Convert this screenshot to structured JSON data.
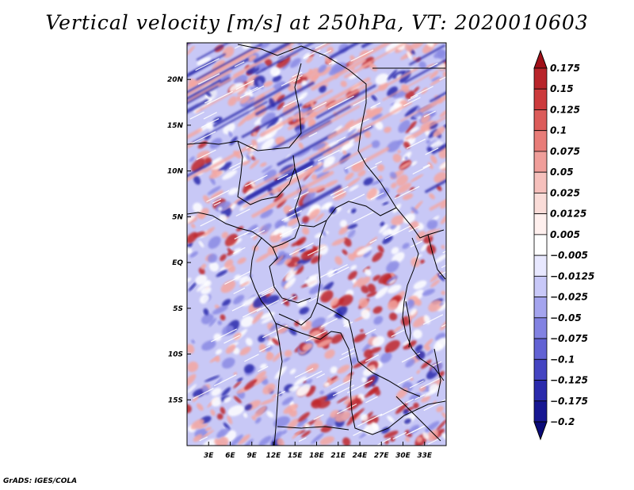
{
  "chart_data": {
    "type": "heatmap",
    "title": "Vertical velocity [m/s] at 250hPa, VT: 2020010603",
    "variable": "Vertical velocity",
    "units": "m/s",
    "level": "250hPa",
    "valid_time": "2020010603",
    "x_axis": {
      "type": "longitude",
      "range_deg": [
        0,
        36
      ],
      "tick_values": [
        3,
        6,
        9,
        12,
        15,
        18,
        21,
        24,
        27,
        30,
        33
      ],
      "tick_labels": [
        "3E",
        "6E",
        "9E",
        "12E",
        "15E",
        "18E",
        "21E",
        "24E",
        "27E",
        "30E",
        "33E"
      ]
    },
    "y_axis": {
      "type": "latitude",
      "range_deg": [
        -20,
        24
      ],
      "tick_values": [
        20,
        15,
        10,
        5,
        0,
        -5,
        -10,
        -15
      ],
      "tick_labels": [
        "20N",
        "15N",
        "10N",
        "5N",
        "EQ",
        "5S",
        "10S",
        "15S"
      ]
    },
    "colorbar": {
      "extend": "both",
      "levels": [
        "0.175",
        "0.15",
        "0.125",
        "0.1",
        "0.075",
        "0.05",
        "0.025",
        "0.0125",
        "0.005",
        "-0.005",
        "-0.0125",
        "-0.025",
        "-0.05",
        "-0.075",
        "-0.1",
        "-0.125",
        "-0.175",
        "-0.2"
      ],
      "colors": [
        "#a01018",
        "#b8242a",
        "#cc3a3c",
        "#dc5c5a",
        "#e87c78",
        "#f09e9a",
        "#f6c0bc",
        "#fadcd8",
        "#fff0ee",
        "#ffffff",
        "#e8e8ff",
        "#c8c8f8",
        "#a4a4ee",
        "#8282e2",
        "#6262d4",
        "#4444c2",
        "#2a2aac",
        "#161692",
        "#0a0a78"
      ]
    },
    "field_description_colors": {
      "strong_down": "#2a2aac",
      "down": "#8a8ae4",
      "weak": "#ffffff",
      "up": "#f4a6a0",
      "strong_up": "#c0282c"
    }
  },
  "footer": {
    "credit": "GrADS: IGES/COLA"
  }
}
